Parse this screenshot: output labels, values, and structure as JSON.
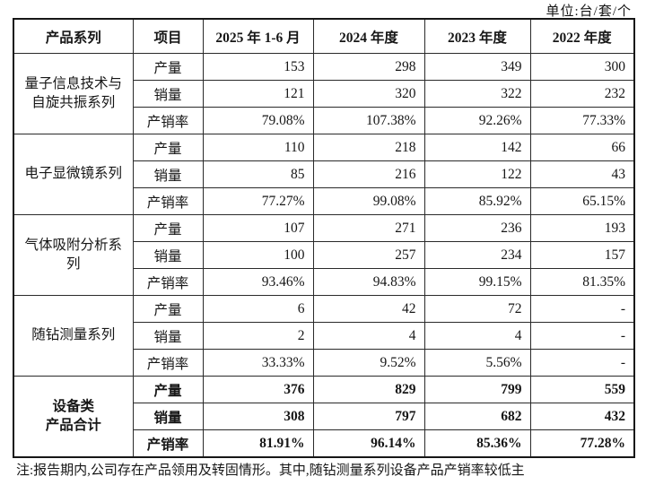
{
  "unit_label": "单位:台/套/个",
  "table": {
    "headers": [
      "产品系列",
      "项目",
      "2025 年 1-6 月",
      "2024 年度",
      "2023 年度",
      "2022 年度"
    ],
    "groups": [
      {
        "name": "量子信息技术与\n自旋共振系列",
        "bold": false,
        "rows": [
          {
            "label": "产量",
            "values": [
              "153",
              "298",
              "349",
              "300"
            ]
          },
          {
            "label": "销量",
            "values": [
              "121",
              "320",
              "322",
              "232"
            ]
          },
          {
            "label": "产销率",
            "values": [
              "79.08%",
              "107.38%",
              "92.26%",
              "77.33%"
            ]
          }
        ]
      },
      {
        "name": "电子显微镜系列",
        "bold": false,
        "rows": [
          {
            "label": "产量",
            "values": [
              "110",
              "218",
              "142",
              "66"
            ]
          },
          {
            "label": "销量",
            "values": [
              "85",
              "216",
              "122",
              "43"
            ]
          },
          {
            "label": "产销率",
            "values": [
              "77.27%",
              "99.08%",
              "85.92%",
              "65.15%"
            ]
          }
        ]
      },
      {
        "name": "气体吸附分析系\n列",
        "bold": false,
        "rows": [
          {
            "label": "产量",
            "values": [
              "107",
              "271",
              "236",
              "193"
            ]
          },
          {
            "label": "销量",
            "values": [
              "100",
              "257",
              "234",
              "157"
            ]
          },
          {
            "label": "产销率",
            "values": [
              "93.46%",
              "94.83%",
              "99.15%",
              "81.35%"
            ]
          }
        ]
      },
      {
        "name": "随钻测量系列",
        "bold": false,
        "rows": [
          {
            "label": "产量",
            "values": [
              "6",
              "42",
              "72",
              "-"
            ]
          },
          {
            "label": "销量",
            "values": [
              "2",
              "4",
              "4",
              "-"
            ]
          },
          {
            "label": "产销率",
            "values": [
              "33.33%",
              "9.52%",
              "5.56%",
              "-"
            ]
          }
        ]
      },
      {
        "name": "设备类\n产品合计",
        "bold": true,
        "rows": [
          {
            "label": "产量",
            "values": [
              "376",
              "829",
              "799",
              "559"
            ]
          },
          {
            "label": "销量",
            "values": [
              "308",
              "797",
              "682",
              "432"
            ]
          },
          {
            "label": "产销率",
            "values": [
              "81.91%",
              "96.14%",
              "85.36%",
              "77.28%"
            ]
          }
        ]
      }
    ]
  },
  "note": "注:报告期内,公司存在产品领用及转固情形。其中,随钻测量系列设备产品产销率较低主"
}
